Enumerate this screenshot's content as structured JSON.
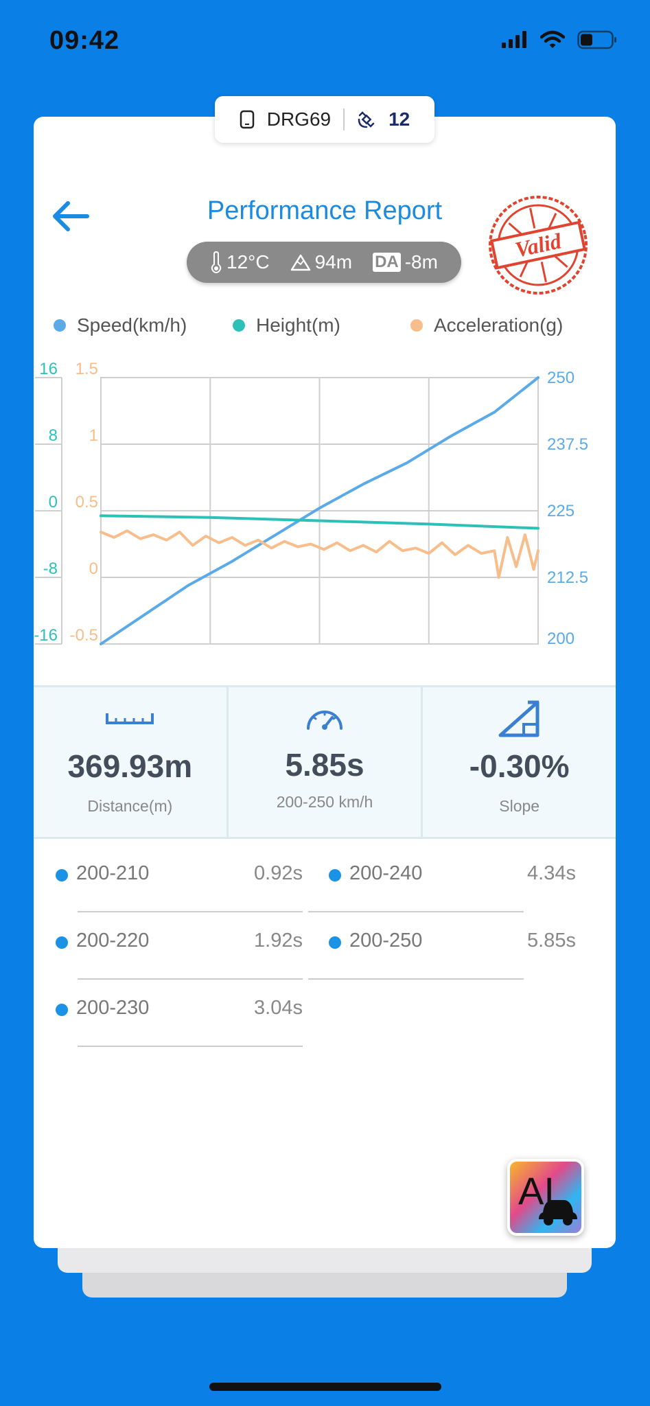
{
  "status_bar": {
    "time": "09:42"
  },
  "device": {
    "name": "DRG69",
    "satellites": "12"
  },
  "header": {
    "title": "Performance Report",
    "stamp_text": "Valid"
  },
  "conditions": {
    "temperature": "12°C",
    "altitude": "94m",
    "da_label": "DA",
    "density_altitude": "-8m"
  },
  "legend": [
    {
      "label": "Speed(km/h)",
      "color": "#5aaae8"
    },
    {
      "label": "Height(m)",
      "color": "#2dc0b8"
    },
    {
      "label": "Acceleration(g)",
      "color": "#f7bd8a"
    }
  ],
  "chart_data": {
    "type": "line",
    "series": [
      {
        "name": "Speed(km/h)",
        "axis": "right",
        "color": "#5aaae8",
        "x": [
          0,
          0.1,
          0.2,
          0.3,
          0.4,
          0.5,
          0.6,
          0.7,
          0.8,
          0.9,
          1.0
        ],
        "y": [
          200,
          205.5,
          211,
          215.5,
          220.5,
          225.5,
          230,
          234,
          239,
          243.5,
          250
        ]
      },
      {
        "name": "Height(m)",
        "axis": "left",
        "color": "#2dc0b8",
        "x": [
          0,
          0.25,
          0.5,
          0.75,
          1.0
        ],
        "y": [
          -0.6,
          -0.8,
          -1.2,
          -1.6,
          -2.1
        ]
      },
      {
        "name": "Acceleration(g)",
        "axis": "left2",
        "color": "#f7bd8a",
        "x": [
          0,
          0.03,
          0.06,
          0.09,
          0.12,
          0.15,
          0.18,
          0.21,
          0.24,
          0.27,
          0.3,
          0.33,
          0.36,
          0.39,
          0.42,
          0.45,
          0.48,
          0.51,
          0.54,
          0.57,
          0.6,
          0.63,
          0.66,
          0.69,
          0.72,
          0.75,
          0.78,
          0.81,
          0.84,
          0.87,
          0.9,
          0.91,
          0.93,
          0.95,
          0.97,
          0.99,
          1.0
        ],
        "y": [
          0.34,
          0.3,
          0.35,
          0.29,
          0.32,
          0.28,
          0.34,
          0.24,
          0.31,
          0.26,
          0.3,
          0.24,
          0.28,
          0.22,
          0.27,
          0.23,
          0.25,
          0.21,
          0.26,
          0.2,
          0.24,
          0.19,
          0.27,
          0.2,
          0.22,
          0.18,
          0.26,
          0.17,
          0.24,
          0.18,
          0.2,
          0.0,
          0.3,
          0.08,
          0.32,
          0.06,
          0.2
        ]
      }
    ],
    "axes": {
      "left": {
        "ticks": [
          "16",
          "8",
          "0",
          "-8",
          "-16"
        ],
        "range": [
          -16,
          16
        ],
        "color": "#2dc0b8"
      },
      "left2": {
        "ticks": [
          "1.5",
          "1",
          "0.5",
          "0",
          "-0.5"
        ],
        "range": [
          -0.5,
          1.5
        ],
        "color": "#f7bd8a"
      },
      "right": {
        "ticks": [
          "250",
          "237.5",
          "225",
          "212.5",
          "200"
        ],
        "range": [
          200,
          250
        ],
        "color": "#5aaae8"
      }
    },
    "grid": true,
    "legend_position": "top"
  },
  "stats": [
    {
      "value": "369.93m",
      "label": "Distance(m)",
      "icon": "ruler-icon"
    },
    {
      "value": "5.85s",
      "label": "200-250 km/h",
      "icon": "speedometer-icon"
    },
    {
      "value": "-0.30%",
      "label": "Slope",
      "icon": "slope-icon"
    }
  ],
  "splits": [
    {
      "range": "200-210",
      "time": "0.92s"
    },
    {
      "range": "200-240",
      "time": "4.34s"
    },
    {
      "range": "200-220",
      "time": "1.92s"
    },
    {
      "range": "200-250",
      "time": "5.85s"
    },
    {
      "range": "200-230",
      "time": "3.04s"
    }
  ],
  "ai_button": {
    "label": "AI"
  }
}
